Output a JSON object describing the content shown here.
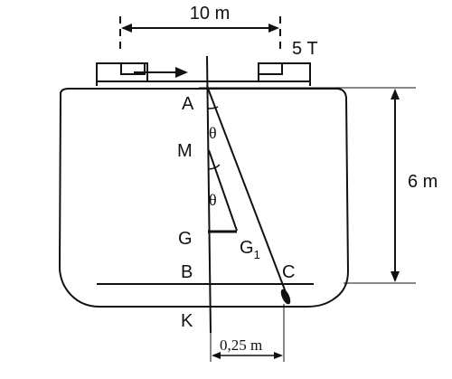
{
  "labels": {
    "top_dimension": "10 m",
    "weight": "5 T",
    "height_dimension": "6 m",
    "bottom_dimension": "0,25 m",
    "theta_upper": "θ",
    "theta_lower": "θ",
    "point_a": "A",
    "point_m": "M",
    "point_g": "G",
    "point_b": "B",
    "point_k": "K",
    "point_c": "C",
    "point_g1_base": "G",
    "point_g1_sub": "1"
  },
  "colors": {
    "stroke": "#111111",
    "background": "#ffffff"
  }
}
